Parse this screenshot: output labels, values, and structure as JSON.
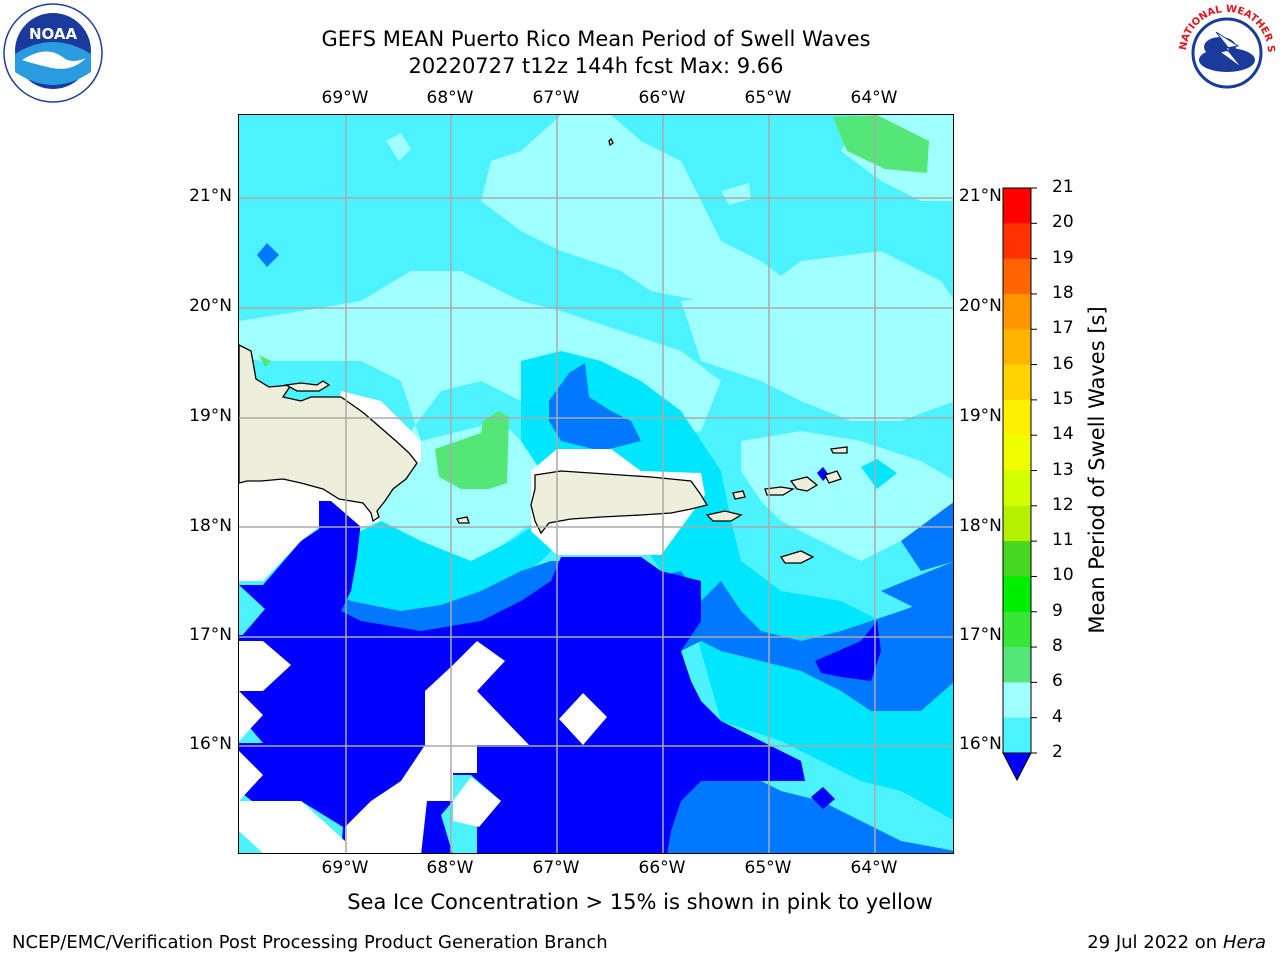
{
  "title": {
    "line1": "GEFS MEAN Puerto Rico Mean Period of Swell Waves",
    "line2": "20220727 t12z 144h fcst   Max: 9.66"
  },
  "logos": {
    "left": "noara-logo",
    "right": "nws-logo",
    "right_text": "NATIONAL WEATHER SERVICE"
  },
  "axes": {
    "lon_labels": [
      "69°W",
      "68°W",
      "67°W",
      "66°W",
      "65°W",
      "64°W"
    ],
    "lat_labels": [
      "21°N",
      "20°N",
      "19°N",
      "18°N",
      "17°N",
      "16°N"
    ]
  },
  "colorbar": {
    "title": "Mean Period of Swell Waves [s]",
    "ticks": [
      "21",
      "20",
      "19",
      "18",
      "17",
      "16",
      "15",
      "14",
      "13",
      "12",
      "11",
      "10",
      "9",
      "8",
      "6",
      "4",
      "2"
    ],
    "colors": [
      "#ff0000",
      "#ff3200",
      "#ff6400",
      "#ff9600",
      "#ffb400",
      "#ffd200",
      "#fff000",
      "#f0ff00",
      "#d2ff00",
      "#b4f000",
      "#46d71e",
      "#00ee00",
      "#37e637",
      "#55e678",
      "#a0ffff",
      "#4df2ff",
      "#00e6ff",
      "#0078ff"
    ],
    "extend_color": "#0000ff"
  },
  "map_colors": {
    "deep_blue": "#0000ff",
    "mid_blue": "#0078ff",
    "cyan": "#00e6ff",
    "light_cyan": "#4df2ff",
    "pale_cyan": "#a0ffff",
    "green": "#55e678",
    "land": "#eeeedd",
    "no_data": "#ffffff"
  },
  "subtitle": "Sea Ice Concentration > 15% is shown in pink to yellow",
  "footer": {
    "left": "NCEP/EMC/Verification Post Processing Product Generation Branch",
    "right_date": "29 Jul 2022 on ",
    "right_machine": "Hera"
  }
}
